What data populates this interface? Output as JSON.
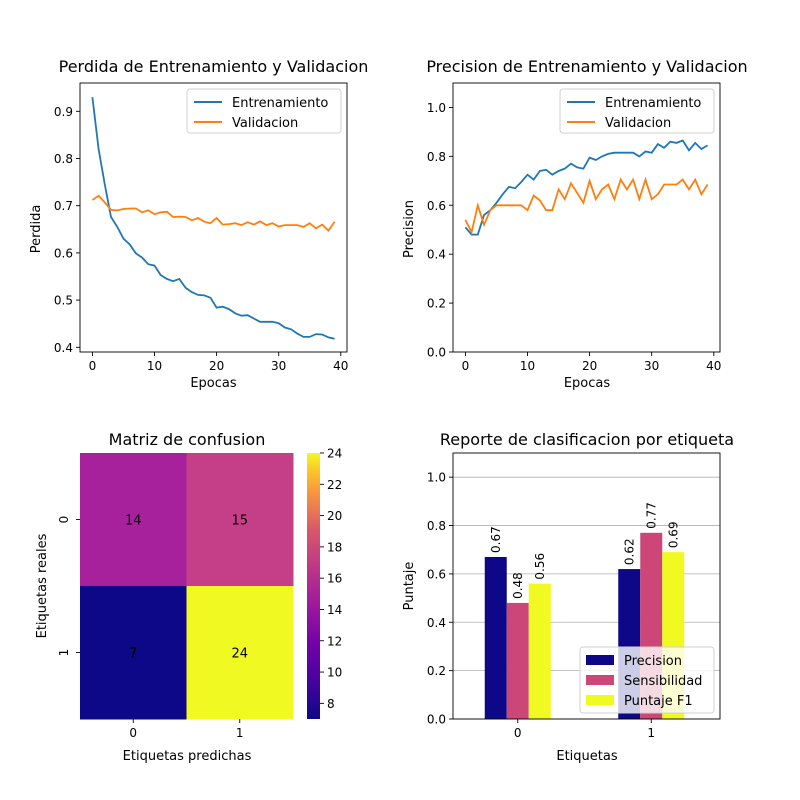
{
  "chart_data": [
    {
      "type": "line",
      "title": "Perdida de Entrenamiento y Validacion",
      "xlabel": "Epocas",
      "ylabel": "Perdida",
      "xlim": [
        -2,
        41
      ],
      "ylim": [
        0.39,
        0.96
      ],
      "xticks": [
        0,
        10,
        20,
        30,
        40
      ],
      "yticks": [
        0.4,
        0.5,
        0.6,
        0.7,
        0.8,
        0.9
      ],
      "grid": false,
      "legend": "top-right",
      "series": [
        {
          "name": "Entrenamiento",
          "color": "#1f77b4",
          "x": [
            0,
            1,
            2,
            3,
            4,
            5,
            6,
            7,
            8,
            9,
            10,
            11,
            12,
            13,
            14,
            15,
            16,
            17,
            18,
            19,
            20,
            21,
            22,
            23,
            24,
            25,
            26,
            27,
            28,
            29,
            30,
            31,
            32,
            33,
            34,
            35,
            36,
            37,
            38,
            39
          ],
          "values": [
            0.93,
            0.82,
            0.745,
            0.676,
            0.655,
            0.63,
            0.618,
            0.599,
            0.59,
            0.576,
            0.573,
            0.553,
            0.545,
            0.54,
            0.545,
            0.526,
            0.517,
            0.511,
            0.51,
            0.505,
            0.484,
            0.486,
            0.481,
            0.472,
            0.467,
            0.468,
            0.461,
            0.454,
            0.454,
            0.454,
            0.451,
            0.442,
            0.438,
            0.429,
            0.422,
            0.422,
            0.428,
            0.427,
            0.421,
            0.418
          ]
        },
        {
          "name": "Validacion",
          "color": "#ff7f0e",
          "x": [
            0,
            1,
            2,
            3,
            4,
            5,
            6,
            7,
            8,
            9,
            10,
            11,
            12,
            13,
            14,
            15,
            16,
            17,
            18,
            19,
            20,
            21,
            22,
            23,
            24,
            25,
            26,
            27,
            28,
            29,
            30,
            31,
            32,
            33,
            34,
            35,
            36,
            37,
            38,
            39
          ],
          "values": [
            0.712,
            0.721,
            0.707,
            0.691,
            0.69,
            0.693,
            0.694,
            0.694,
            0.686,
            0.69,
            0.682,
            0.686,
            0.687,
            0.676,
            0.677,
            0.676,
            0.669,
            0.674,
            0.666,
            0.663,
            0.674,
            0.66,
            0.661,
            0.663,
            0.659,
            0.665,
            0.66,
            0.667,
            0.659,
            0.663,
            0.656,
            0.659,
            0.659,
            0.659,
            0.655,
            0.663,
            0.652,
            0.66,
            0.647,
            0.666
          ]
        }
      ]
    },
    {
      "type": "line",
      "title": "Precision de Entrenamiento y Validacion",
      "xlabel": "Epocas",
      "ylabel": "Precision",
      "xlim": [
        -2,
        41
      ],
      "ylim": [
        0.0,
        1.1
      ],
      "xticks": [
        0,
        10,
        20,
        30,
        40
      ],
      "yticks": [
        0.0,
        0.2,
        0.4,
        0.6,
        0.8,
        1.0
      ],
      "grid": false,
      "legend": "top-right",
      "series": [
        {
          "name": "Entrenamiento",
          "color": "#1f77b4",
          "x": [
            0,
            1,
            2,
            3,
            4,
            5,
            6,
            7,
            8,
            9,
            10,
            11,
            12,
            13,
            14,
            15,
            16,
            17,
            18,
            19,
            20,
            21,
            22,
            23,
            24,
            25,
            26,
            27,
            28,
            29,
            30,
            31,
            32,
            33,
            34,
            35,
            36,
            37,
            38,
            39
          ],
          "values": [
            0.51,
            0.48,
            0.48,
            0.56,
            0.58,
            0.61,
            0.645,
            0.675,
            0.67,
            0.695,
            0.725,
            0.705,
            0.74,
            0.745,
            0.725,
            0.74,
            0.75,
            0.77,
            0.755,
            0.75,
            0.795,
            0.785,
            0.8,
            0.81,
            0.815,
            0.815,
            0.815,
            0.815,
            0.8,
            0.82,
            0.815,
            0.85,
            0.835,
            0.86,
            0.855,
            0.865,
            0.825,
            0.855,
            0.83,
            0.845
          ]
        },
        {
          "name": "Validacion",
          "color": "#ff7f0e",
          "x": [
            0,
            1,
            2,
            3,
            4,
            5,
            6,
            7,
            8,
            9,
            10,
            11,
            12,
            13,
            14,
            15,
            16,
            17,
            18,
            19,
            20,
            21,
            22,
            23,
            24,
            25,
            26,
            27,
            28,
            29,
            30,
            31,
            32,
            33,
            34,
            35,
            36,
            37,
            38,
            39
          ],
          "values": [
            0.54,
            0.49,
            0.6,
            0.52,
            0.58,
            0.6,
            0.6,
            0.6,
            0.6,
            0.6,
            0.58,
            0.64,
            0.62,
            0.58,
            0.58,
            0.665,
            0.625,
            0.69,
            0.65,
            0.61,
            0.7,
            0.625,
            0.665,
            0.685,
            0.625,
            0.705,
            0.665,
            0.705,
            0.625,
            0.705,
            0.625,
            0.645,
            0.685,
            0.685,
            0.685,
            0.705,
            0.665,
            0.705,
            0.645,
            0.685
          ]
        }
      ]
    },
    {
      "type": "heatmap",
      "title": "Matriz de confusion",
      "xlabel": "Etiquetas predichas",
      "ylabel": "Etiquetas reales",
      "xticklabels": [
        "0",
        "1"
      ],
      "yticklabels": [
        "0",
        "1"
      ],
      "values": [
        [
          14,
          15
        ],
        [
          7,
          24
        ]
      ],
      "colormap": "plasma",
      "colorbar": {
        "min": 7,
        "max": 24,
        "ticks": [
          8,
          10,
          12,
          14,
          16,
          18,
          20,
          22,
          24
        ]
      },
      "cell_colors": [
        [
          "#a8219c",
          "#c43f87"
        ],
        [
          "#0d0887",
          "#f0f921"
        ]
      ],
      "text_color": "#ffffff"
    },
    {
      "type": "bar",
      "title": "Reporte de clasificacion por etiqueta",
      "xlabel": "Etiquetas",
      "ylabel": "Puntaje",
      "categories": [
        "0",
        "1"
      ],
      "ylim": [
        0.0,
        1.1
      ],
      "yticks": [
        0.0,
        0.2,
        0.4,
        0.6,
        0.8,
        1.0
      ],
      "grid": true,
      "legend": "lower-right",
      "series": [
        {
          "name": "Precision",
          "color": "#0d0887",
          "values": [
            0.67,
            0.62
          ],
          "labels": [
            "0.67",
            "0.62"
          ]
        },
        {
          "name": "Sensibilidad",
          "color": "#cc4778",
          "values": [
            0.48,
            0.77
          ],
          "labels": [
            "0.48",
            "0.77"
          ]
        },
        {
          "name": "Puntaje F1",
          "color": "#f0f921",
          "values": [
            0.56,
            0.69
          ],
          "labels": [
            "0.56",
            "0.69"
          ]
        }
      ]
    }
  ]
}
